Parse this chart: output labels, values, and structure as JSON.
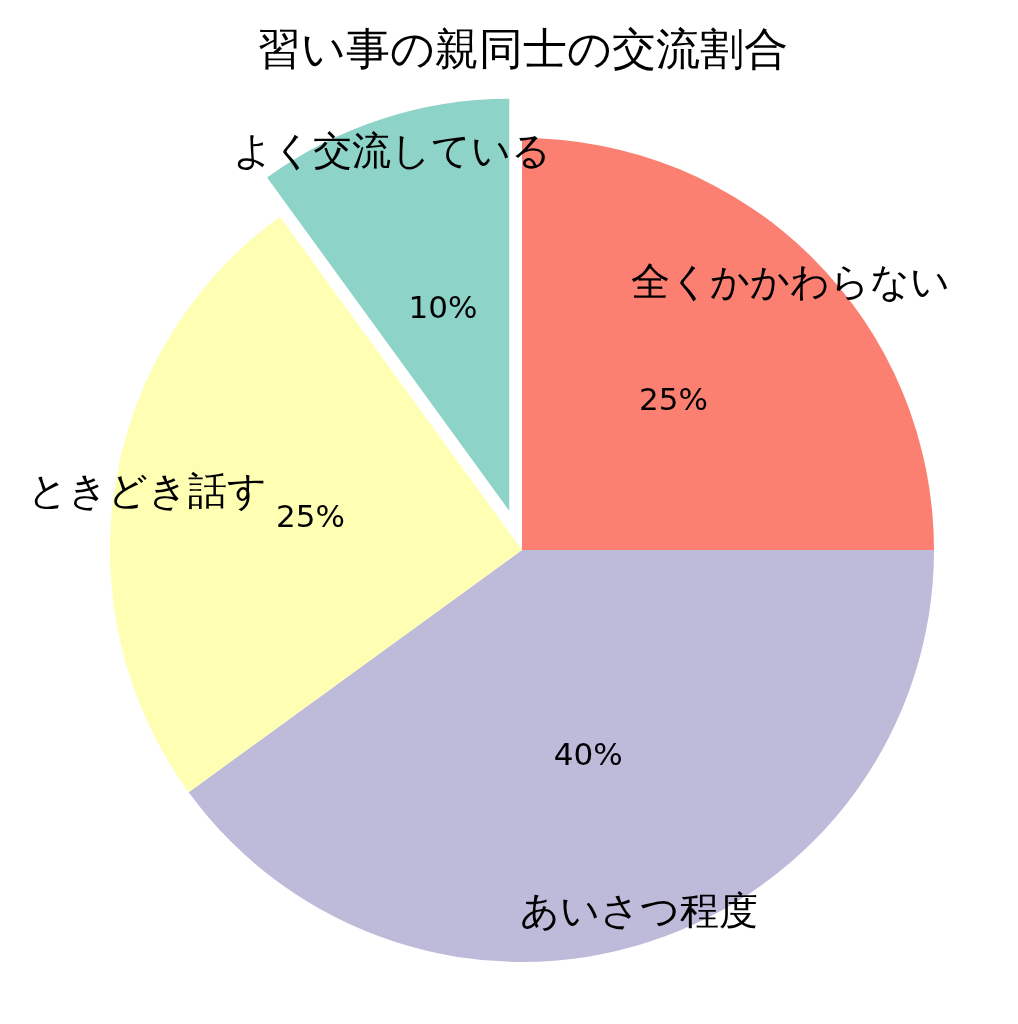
{
  "chart_data": {
    "type": "pie",
    "title": "習い事の親同士の交流割合",
    "categories": [
      "全くかかわらない",
      "あいさつ程度",
      "ときどき話す",
      "よく交流している"
    ],
    "values": [
      25,
      40,
      25,
      10
    ],
    "colors": [
      "#fb8072",
      "#bebada",
      "#ffffb3",
      "#8dd3c7"
    ],
    "value_labels": [
      "25%",
      "40%",
      "25%",
      "10%"
    ]
  }
}
